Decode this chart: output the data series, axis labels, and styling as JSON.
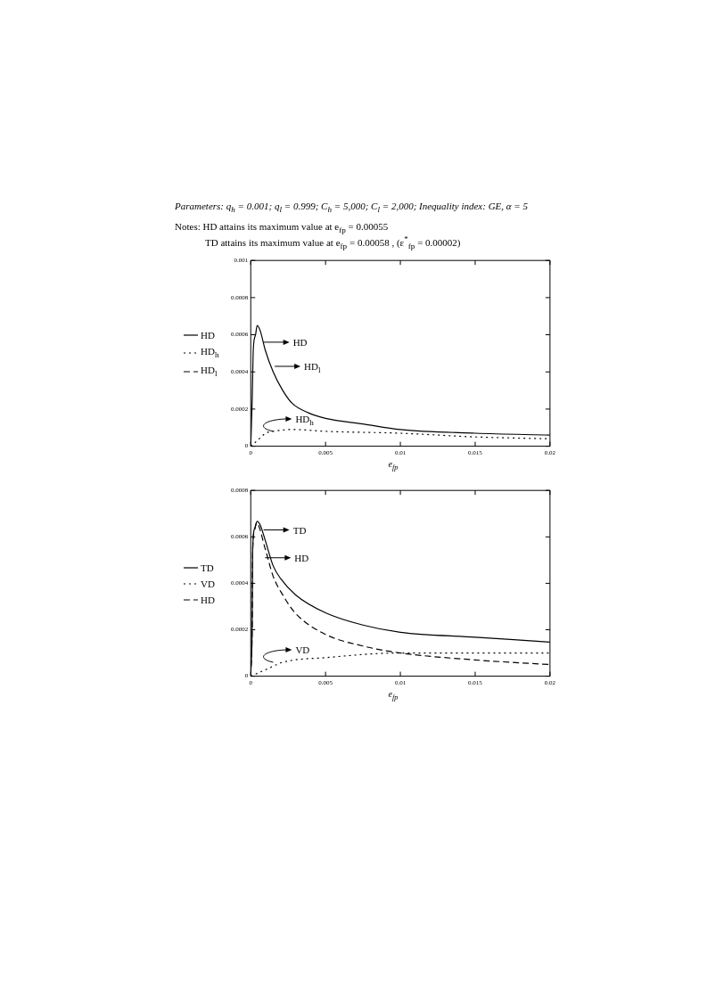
{
  "chart_data": [
    {
      "type": "line",
      "title": "Parameters: q$_{h}$ = 0.001; q$_{l}$ = 0.999; C$_{h}$ = 5,000; C$_{l}$ = 2,000; Inequality index: GE, α = 5",
      "xlabel": "e$_{fp}$",
      "annotations": [
        "Notes: HD attains its maximum value at e$_{fp}$ = 0.00055",
        "TD attains its maximum value at e$_{fp}$ = 0.00058 , (ε$^{*}$$_{fp}$ = 0.00002)",
        {
          "text": "HD",
          "x": 0.00086,
          "y": 0.00056
        },
        {
          "text": "HD$_{l}$",
          "x": 0.0016,
          "y": 0.00043
        },
        {
          "text": "HD$_{h}$",
          "x": 0.0015,
          "y": 8e-05
        }
      ],
      "xlim": [
        0,
        0.02
      ],
      "xticks": [
        0,
        0.005,
        0.01,
        0.015,
        0.02
      ],
      "ylim": [
        0,
        0.001
      ],
      "yticks": [
        0,
        0.0002,
        0.0004,
        0.0006,
        0.0008,
        0.001
      ],
      "grid": false,
      "legend": "left",
      "marker": "none",
      "series": [
        {
          "name": "HD",
          "color": "#000000",
          "line_style": "solid",
          "x": [
            0,
            0.0001,
            0.00017,
            0.00032,
            0.00043,
            0.00064,
            0.00096,
            0.0015,
            0.00214,
            0.00278,
            0.00385,
            0.005,
            0.0075,
            0.01,
            0.015,
            0.02
          ],
          "values": [
            0,
            0.00026,
            0.00052,
            0.0006,
            0.00065,
            0.00062,
            0.00052,
            0.0004,
            0.0003,
            0.00023,
            0.00018,
            0.00015,
            0.00012,
            9e-05,
            7e-05,
            6e-05
          ]
        },
        {
          "name": "HD$_{h}$",
          "color": "#000000",
          "line_style": "dotted",
          "x": [
            0,
            0.00043,
            0.001,
            0.0015,
            0.0028,
            0.005,
            0.01,
            0.015,
            0.02
          ],
          "values": [
            0,
            3e-05,
            7e-05,
            8e-05,
            9e-05,
            8e-05,
            7e-05,
            5e-05,
            4e-05
          ]
        },
        {
          "name": "HD$_{l}$",
          "color": "#000000",
          "line_style": "dashed"
        }
      ]
    },
    {
      "type": "line",
      "xlabel": "e$_{fp}$",
      "annotations": [
        {
          "text": "TD",
          "x": 0.00086,
          "y": 0.00063
        },
        {
          "text": "HD",
          "x": 0.00096,
          "y": 0.00051
        },
        {
          "text": "VD",
          "x": 0.0015,
          "y": 6e-05
        }
      ],
      "xlim": [
        0,
        0.02
      ],
      "xticks": [
        0,
        0.005,
        0.01,
        0.015,
        0.02
      ],
      "ylim": [
        0,
        0.0008
      ],
      "yticks": [
        0,
        0.0002,
        0.0004,
        0.0006,
        0.0008
      ],
      "grid": false,
      "legend": "left",
      "marker": "none",
      "series": [
        {
          "name": "TD",
          "color": "#000000",
          "line_style": "solid",
          "x": [
            0,
            0.0001,
            0.00013,
            0.00026,
            0.00043,
            0.00064,
            0.00096,
            0.0015,
            0.002,
            0.003,
            0.005,
            0.0075,
            0.01,
            0.015,
            0.02
          ],
          "values": [
            0,
            0.00024,
            0.00055,
            0.000636,
            0.000667,
            0.00065,
            0.000587,
            0.000475,
            0.00042,
            0.00035,
            0.000273,
            0.00022,
            0.000189,
            0.000168,
            0.000147
          ]
        },
        {
          "name": "VD",
          "color": "#000000",
          "line_style": "dotted",
          "x": [
            0,
            0.00107,
            0.00214,
            0.005,
            0.01,
            0.015,
            0.02
          ],
          "values": [
            0,
            3e-05,
            6e-05,
            8e-05,
            0.0001,
            0.0001,
            0.0001
          ]
        },
        {
          "name": "HD",
          "color": "#000000",
          "line_style": "dashed",
          "x": [
            0,
            0.0001,
            0.00013,
            0.00026,
            0.00039,
            0.00096,
            0.0015,
            0.00214,
            0.003,
            0.005,
            0.0075,
            0.01,
            0.015,
            0.02
          ],
          "values": [
            0,
            0.00024,
            0.00054,
            0.00063,
            0.00066,
            0.00055,
            0.00043,
            0.00035,
            0.00027,
            0.00018,
            0.00013,
            0.0001,
            7e-05,
            5e-05
          ]
        }
      ]
    }
  ]
}
